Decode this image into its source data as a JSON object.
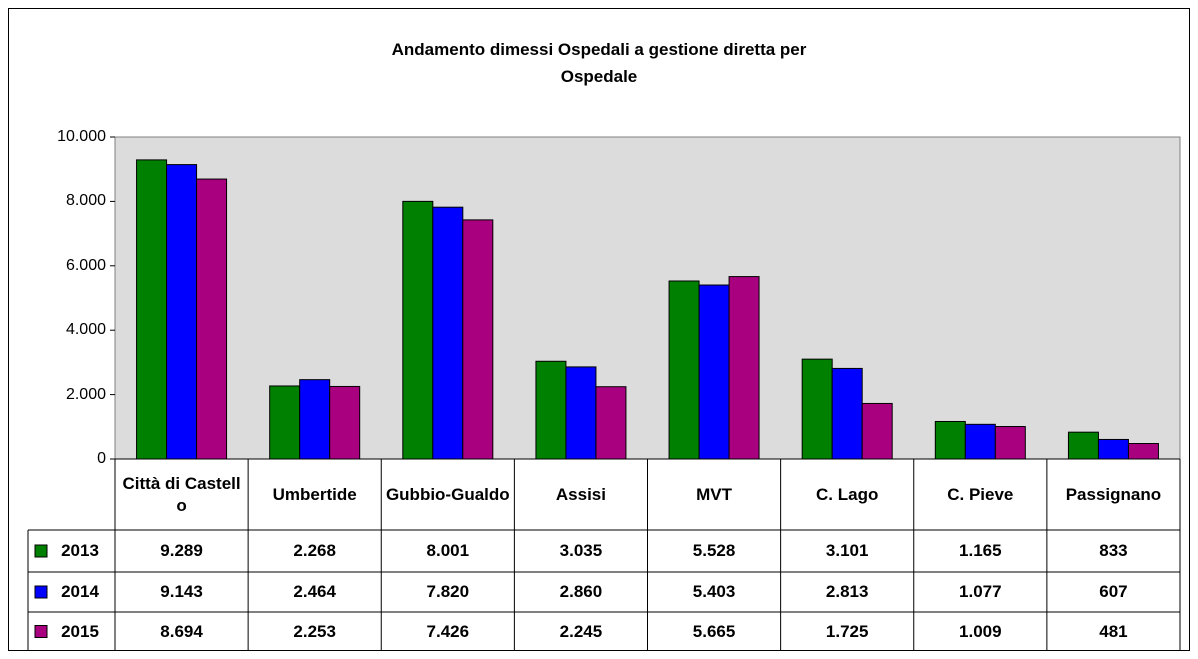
{
  "chart_data": {
    "type": "bar",
    "title": "Andamento dimessi Ospedali a gestione diretta per Ospedale",
    "categories": [
      "Città di Castello",
      "Umbertide",
      "Gubbio-Gualdo",
      "Assisi",
      "MVT",
      "C. Lago",
      "C. Pieve",
      "Passignano"
    ],
    "series": [
      {
        "name": "2013",
        "color": "#008000",
        "values": [
          9289,
          2268,
          8001,
          3035,
          5528,
          3101,
          1165,
          833
        ],
        "value_labels": [
          "9.289",
          "2.268",
          "8.001",
          "3.035",
          "5.528",
          "3.101",
          "1.165",
          "833"
        ]
      },
      {
        "name": "2014",
        "color": "#0000ff",
        "values": [
          9143,
          2464,
          7820,
          2860,
          5403,
          2813,
          1077,
          607
        ],
        "value_labels": [
          "9.143",
          "2.464",
          "7.820",
          "2.860",
          "5.403",
          "2.813",
          "1.077",
          "607"
        ]
      },
      {
        "name": "2015",
        "color": "#a8007f",
        "values": [
          8694,
          2253,
          7426,
          2245,
          5665,
          1725,
          1009,
          481
        ],
        "value_labels": [
          "8.694",
          "2.253",
          "7.426",
          "2.245",
          "5.665",
          "1.725",
          "1.009",
          "481"
        ]
      }
    ],
    "ylim": [
      0,
      10000
    ],
    "yticks": [
      0,
      {
        "value": 2000,
        "label": "2.000"
      },
      {
        "value": 4000,
        "label": "4.000"
      },
      {
        "value": 6000,
        "label": "6.000"
      },
      {
        "value": 8000,
        "label": "8.000"
      },
      {
        "value": 10000,
        "label": "10.000"
      }
    ],
    "grid": false
  }
}
